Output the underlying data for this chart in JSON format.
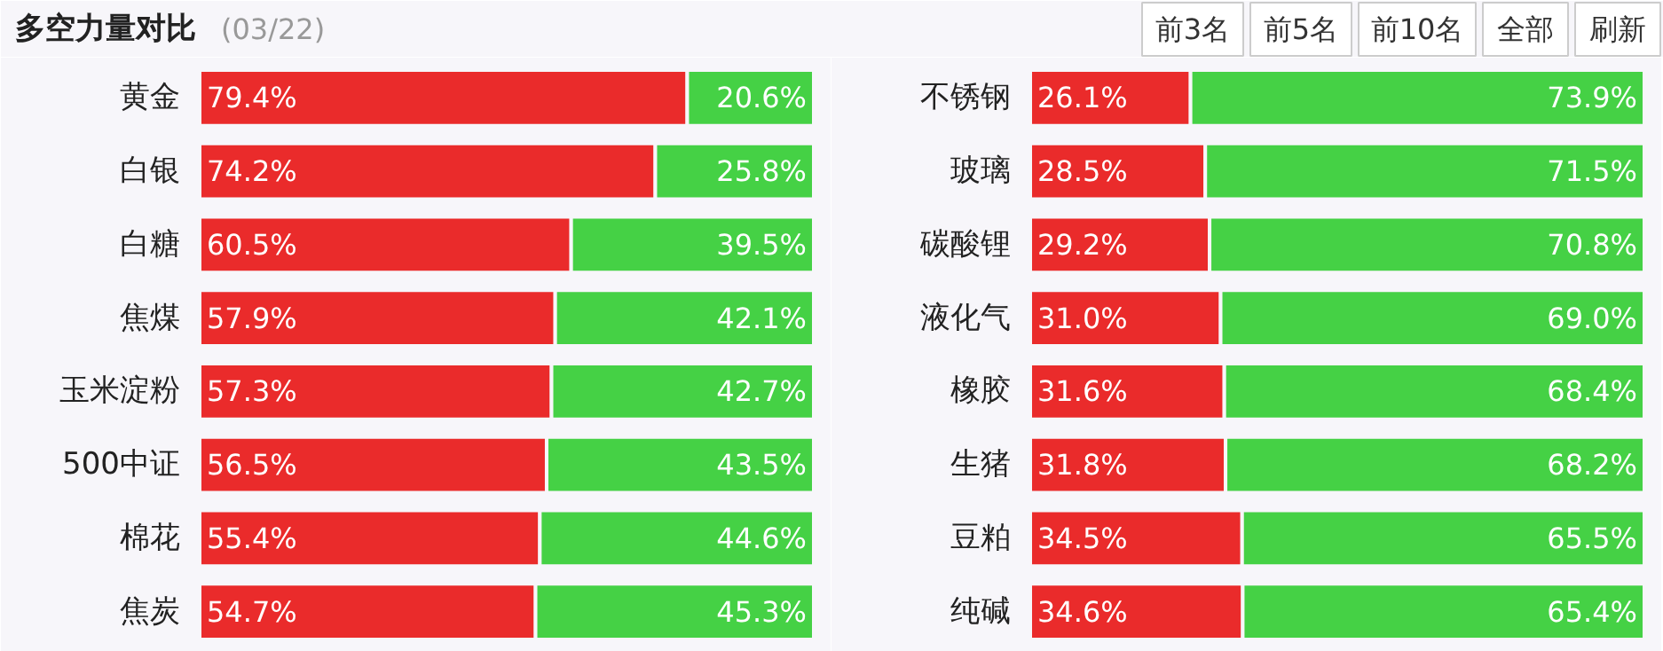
{
  "chart_data": [
    {
      "type": "bar",
      "title": "多空力量对比",
      "subtitle": "(03/22)",
      "annotations": [
        "前3名",
        "前5名",
        "前10名",
        "全部",
        "刷新"
      ],
      "orientation": "horizontal",
      "stacked": true,
      "tick_labels": "y",
      "categories": [
        "黄金",
        "白银",
        "白糖",
        "焦煤",
        "玉米淀粉",
        "500中证",
        "棉花",
        "焦炭"
      ],
      "series": [
        {
          "color": "#ea2b2b",
          "values": [
            79.4,
            74.2,
            60.5,
            57.9,
            57.3,
            56.5,
            55.4,
            54.7
          ],
          "value_labels": [
            "79.4%",
            "74.2%",
            "60.5%",
            "57.9%",
            "57.3%",
            "56.5%",
            "55.4%",
            "54.7%"
          ]
        },
        {
          "color": "#45d145",
          "values": [
            20.6,
            25.8,
            39.5,
            42.1,
            42.7,
            43.5,
            44.6,
            45.3
          ],
          "value_labels": [
            "20.6%",
            "25.8%",
            "39.5%",
            "42.1%",
            "42.7%",
            "43.5%",
            "44.6%",
            "45.3%"
          ]
        }
      ]
    },
    {
      "type": "bar",
      "orientation": "horizontal",
      "stacked": true,
      "tick_labels": "y",
      "categories": [
        "不锈钢",
        "玻璃",
        "碳酸锂",
        "液化气",
        "橡胶",
        "生猪",
        "豆粕",
        "纯碱"
      ],
      "series": [
        {
          "color": "#ea2b2b",
          "values": [
            26.1,
            28.5,
            29.2,
            31.0,
            31.6,
            31.8,
            34.5,
            34.6
          ],
          "value_labels": [
            "26.1%",
            "28.5%",
            "29.2%",
            "31.0%",
            "31.6%",
            "31.8%",
            "34.5%",
            "34.6%"
          ]
        },
        {
          "color": "#45d145",
          "values": [
            73.9,
            71.5,
            70.8,
            69.0,
            68.4,
            68.2,
            65.5,
            65.4
          ],
          "value_labels": [
            "73.9%",
            "71.5%",
            "70.8%",
            "69.0%",
            "68.4%",
            "68.2%",
            "65.5%",
            "65.4%"
          ]
        }
      ]
    }
  ]
}
